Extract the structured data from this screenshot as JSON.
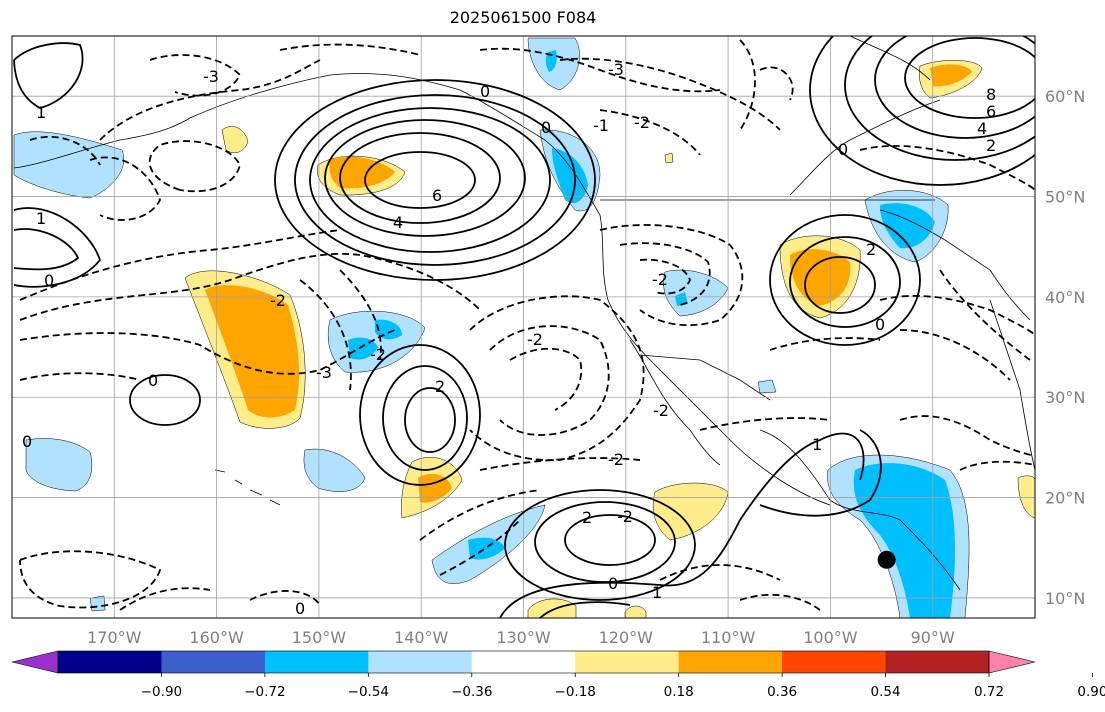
{
  "title": "2025061500 F084",
  "map": {
    "lon_labels": [
      "170°W",
      "160°W",
      "150°W",
      "140°W",
      "130°W",
      "120°W",
      "110°W",
      "100°W",
      "90°W"
    ],
    "lat_labels": [
      "60°N",
      "50°N",
      "40°N",
      "30°N",
      "20°N",
      "10°N"
    ],
    "lon_values": [
      -170,
      -160,
      -150,
      -140,
      -130,
      -120,
      -110,
      -100,
      -90
    ],
    "lat_values": [
      60,
      50,
      40,
      30,
      20,
      10
    ],
    "lon_range": [
      -180,
      -80
    ],
    "lat_range": [
      8,
      66
    ],
    "grid": true,
    "marker": {
      "lon": -94.5,
      "lat": 13.8,
      "color": "#000000"
    },
    "contour_labels": [
      "0",
      "-1",
      "-2",
      "-3",
      "1",
      "2",
      "4",
      "6",
      "8"
    ]
  },
  "colorbar": {
    "ticks": [
      "−0.90",
      "−0.72",
      "−0.54",
      "−0.36",
      "−0.18",
      "0.18",
      "0.36",
      "0.54",
      "0.72",
      "0.90"
    ],
    "colors": [
      "#9932cc",
      "#00008b",
      "#3a5fcd",
      "#00bfff",
      "#b0e2ff",
      "#ffffff",
      "#ffec8b",
      "#ffa500",
      "#ff4500",
      "#b22222",
      "#ff82ab"
    ]
  },
  "fill_colors": {
    "light_blue": "#b0e2ff",
    "blue": "#00bfff",
    "light_yellow": "#ffec8b",
    "orange": "#ffa500"
  }
}
